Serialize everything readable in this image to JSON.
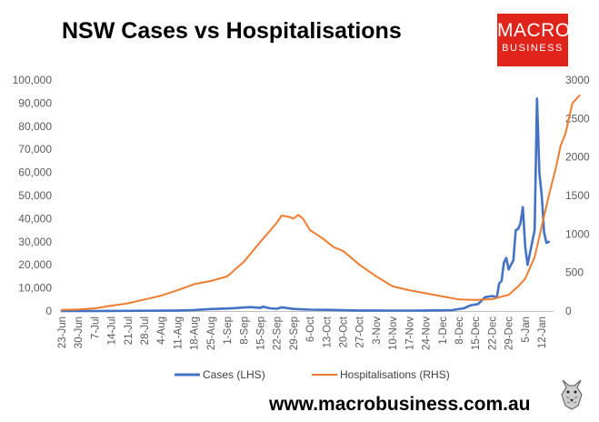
{
  "header": {
    "title": "NSW Cases vs Hospitalisations"
  },
  "logo": {
    "line1": "MACRO",
    "line2": "BUSINESS",
    "color": "#e0241c"
  },
  "footer": {
    "website": "www.macrobusiness.com.au",
    "mascot_icon": "wolf-icon"
  },
  "chart_data": {
    "type": "line",
    "title": "NSW Cases vs Hospitalisations",
    "xlabel": "",
    "ylabel": "",
    "y_left": {
      "min": 0,
      "max": 100000,
      "step": 10000,
      "ticks": [
        "0",
        "10,000",
        "20,000",
        "30,000",
        "40,000",
        "50,000",
        "60,000",
        "70,000",
        "80,000",
        "90,000",
        "100,000"
      ]
    },
    "y_right": {
      "min": 0,
      "max": 3000,
      "step": 500,
      "ticks": [
        "0",
        "500",
        "1000",
        "1500",
        "2000",
        "2500",
        "3000"
      ]
    },
    "x_tick_labels": [
      "23-Jun",
      "30-Jun",
      "7-Jul",
      "14-Jul",
      "21-Jul",
      "28-Jul",
      "4-Aug",
      "11-Aug",
      "18-Aug",
      "25-Aug",
      "1-Sep",
      "8-Sep",
      "15-Sep",
      "22-Sep",
      "29-Sep",
      "6-Oct",
      "13-Oct",
      "20-Oct",
      "27-Oct",
      "3-Nov",
      "10-Nov",
      "17-Nov",
      "24-Nov",
      "1-Dec",
      "8-Dec",
      "15-Dec",
      "22-Dec",
      "29-Dec",
      "5-Jan",
      "12-Jan"
    ],
    "x_range_days": [
      0,
      208
    ],
    "grid": false,
    "legend_position": "bottom",
    "series": [
      {
        "name": "Cases (LHS)",
        "axis": "left",
        "color": "#4472c4",
        "points": [
          [
            0,
            0
          ],
          [
            20,
            50
          ],
          [
            35,
            100
          ],
          [
            42,
            150
          ],
          [
            49,
            250
          ],
          [
            56,
            450
          ],
          [
            63,
            850
          ],
          [
            70,
            1100
          ],
          [
            74,
            1300
          ],
          [
            77,
            1550
          ],
          [
            80,
            1700
          ],
          [
            84,
            1350
          ],
          [
            85,
            1900
          ],
          [
            88,
            1200
          ],
          [
            91,
            1000
          ],
          [
            93,
            1600
          ],
          [
            98,
            900
          ],
          [
            105,
            600
          ],
          [
            112,
            500
          ],
          [
            119,
            350
          ],
          [
            126,
            250
          ],
          [
            133,
            250
          ],
          [
            140,
            200
          ],
          [
            147,
            200
          ],
          [
            154,
            250
          ],
          [
            161,
            300
          ],
          [
            165,
            400
          ],
          [
            170,
            1200
          ],
          [
            173,
            2500
          ],
          [
            176,
            3000
          ],
          [
            179,
            6000
          ],
          [
            182,
            6500
          ],
          [
            184,
            6000
          ],
          [
            185,
            12000
          ],
          [
            186,
            13000
          ],
          [
            187,
            21000
          ],
          [
            188,
            23000
          ],
          [
            189,
            18000
          ],
          [
            190,
            20000
          ],
          [
            191,
            22000
          ],
          [
            192,
            35000
          ],
          [
            193,
            35500
          ],
          [
            194,
            38000
          ],
          [
            195,
            45000
          ],
          [
            196,
            28000
          ],
          [
            197,
            20000
          ],
          [
            198,
            25000
          ],
          [
            199,
            30000
          ],
          [
            200,
            35000
          ],
          [
            201,
            92000
          ],
          [
            202,
            60000
          ],
          [
            203,
            50000
          ],
          [
            204,
            34000
          ],
          [
            205,
            29500
          ],
          [
            206,
            30000
          ]
        ]
      },
      {
        "name": "Hospitalisations (RHS)",
        "axis": "right",
        "color": "#ed7d31",
        "points": [
          [
            0,
            15
          ],
          [
            7,
            20
          ],
          [
            14,
            35
          ],
          [
            21,
            70
          ],
          [
            28,
            100
          ],
          [
            35,
            150
          ],
          [
            42,
            200
          ],
          [
            49,
            270
          ],
          [
            56,
            350
          ],
          [
            63,
            390
          ],
          [
            70,
            450
          ],
          [
            77,
            640
          ],
          [
            80,
            750
          ],
          [
            84,
            900
          ],
          [
            88,
            1040
          ],
          [
            91,
            1150
          ],
          [
            93,
            1240
          ],
          [
            96,
            1225
          ],
          [
            98,
            1200
          ],
          [
            100,
            1250
          ],
          [
            102,
            1200
          ],
          [
            105,
            1050
          ],
          [
            110,
            950
          ],
          [
            115,
            830
          ],
          [
            119,
            780
          ],
          [
            126,
            600
          ],
          [
            133,
            450
          ],
          [
            140,
            320
          ],
          [
            147,
            270
          ],
          [
            154,
            230
          ],
          [
            161,
            190
          ],
          [
            168,
            150
          ],
          [
            175,
            145
          ],
          [
            182,
            155
          ],
          [
            189,
            210
          ],
          [
            193,
            320
          ],
          [
            196,
            420
          ],
          [
            200,
            700
          ],
          [
            203,
            1100
          ],
          [
            206,
            1500
          ],
          [
            209,
            1860
          ],
          [
            211,
            2150
          ],
          [
            213,
            2300
          ],
          [
            216,
            2700
          ],
          [
            219,
            2800
          ]
        ]
      }
    ],
    "x_axis_days_note": ""
  }
}
